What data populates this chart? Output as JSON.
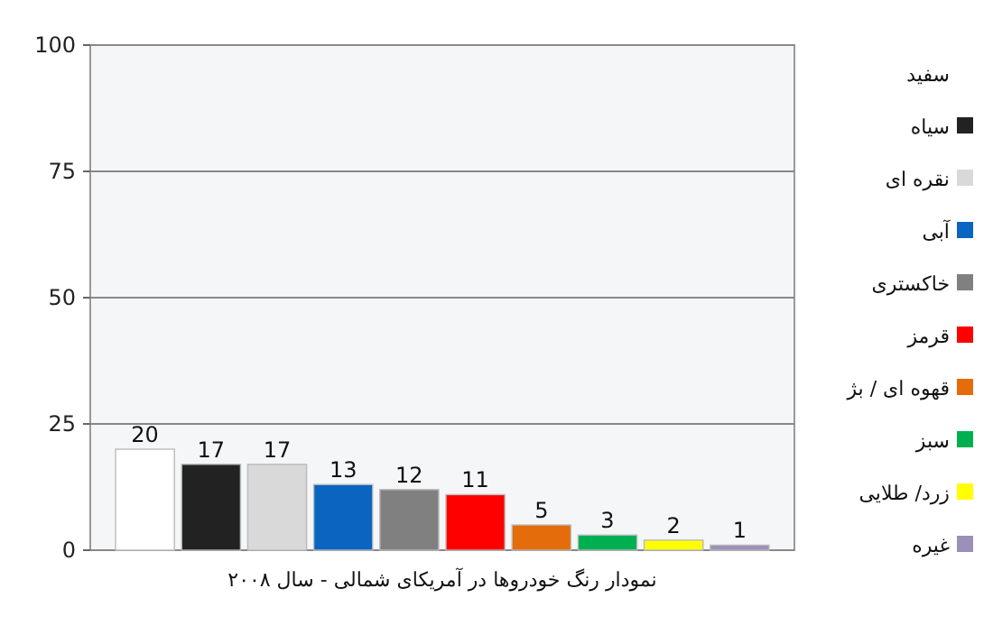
{
  "chart_data": {
    "type": "bar",
    "categories": [
      null
    ],
    "series": [
      {
        "name": "سفید",
        "color": "#ffffff",
        "values": [
          20
        ]
      },
      {
        "name": "سیاه",
        "color": "#222222",
        "values": [
          17
        ]
      },
      {
        "name": "نقره ای",
        "color": "#d9d9d9",
        "values": [
          17
        ]
      },
      {
        "name": "آبی",
        "color": "#0a64c0",
        "values": [
          13
        ]
      },
      {
        "name": "خاکستری",
        "color": "#808080",
        "values": [
          12
        ]
      },
      {
        "name": "قرمز",
        "color": "#ff0000",
        "values": [
          11
        ]
      },
      {
        "name": "قهوه ای / بژ",
        "color": "#e46c0a",
        "values": [
          5
        ]
      },
      {
        "name": "سبز",
        "color": "#00b050",
        "values": [
          3
        ]
      },
      {
        "name": "زرد/ طلایی",
        "color": "#ffff00",
        "values": [
          2
        ]
      },
      {
        "name": "غیره",
        "color": "#9c8fb8",
        "values": [
          1
        ]
      }
    ],
    "xlabel": "نمودار رنگ خودروها در آمریکای شمالی - سال ۲۰۰۸",
    "ylim": [
      0,
      100
    ],
    "yticks": [
      0,
      25,
      50,
      75,
      100
    ],
    "grid": "y",
    "legend": "right",
    "data_labels": true
  }
}
